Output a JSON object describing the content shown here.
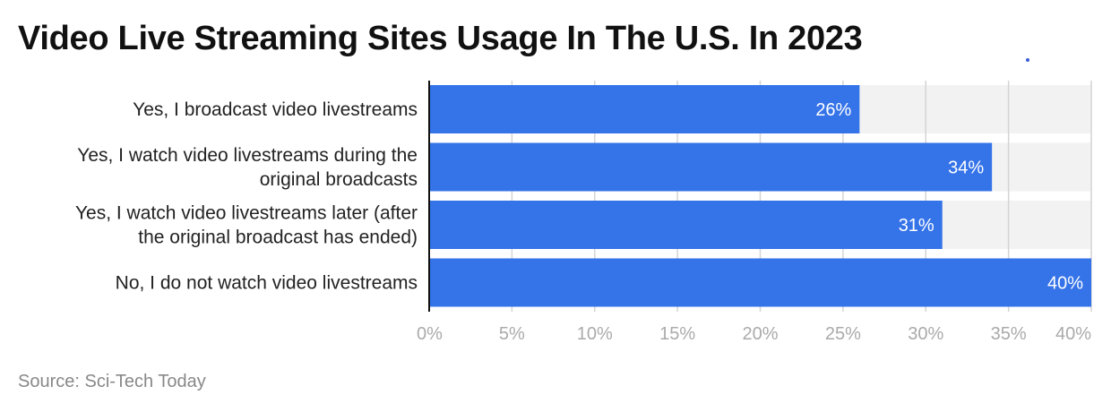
{
  "title": "Video Live Streaming Sites Usage In The U.S. In 2023",
  "source": "Source: Sci-Tech Today",
  "colors": {
    "bar": "#3573e8",
    "band": "#f2f2f2",
    "grid": "#d4d4d4",
    "axis": "#111111",
    "tick_text": "#aaaaaa",
    "label_text": "#222222",
    "value_text": "#ffffff"
  },
  "chart_data": {
    "type": "bar",
    "orientation": "horizontal",
    "categories": [
      [
        "Yes, I broadcast video livestreams"
      ],
      [
        "Yes, I watch video livestreams during the",
        "original broadcasts"
      ],
      [
        "Yes, I watch video livestreams later (after",
        "the original broadcast has ended)"
      ],
      [
        "No, I do not watch video livestreams"
      ]
    ],
    "values": [
      26,
      34,
      31,
      40
    ],
    "value_labels": [
      "26%",
      "34%",
      "31%",
      "40%"
    ],
    "xlim": [
      0,
      40
    ],
    "xticks": [
      0,
      5,
      10,
      15,
      20,
      25,
      30,
      35,
      40
    ],
    "xtick_labels": [
      "0%",
      "5%",
      "10%",
      "15%",
      "20%",
      "25%",
      "30%",
      "35%",
      "40%"
    ],
    "grid": true
  }
}
